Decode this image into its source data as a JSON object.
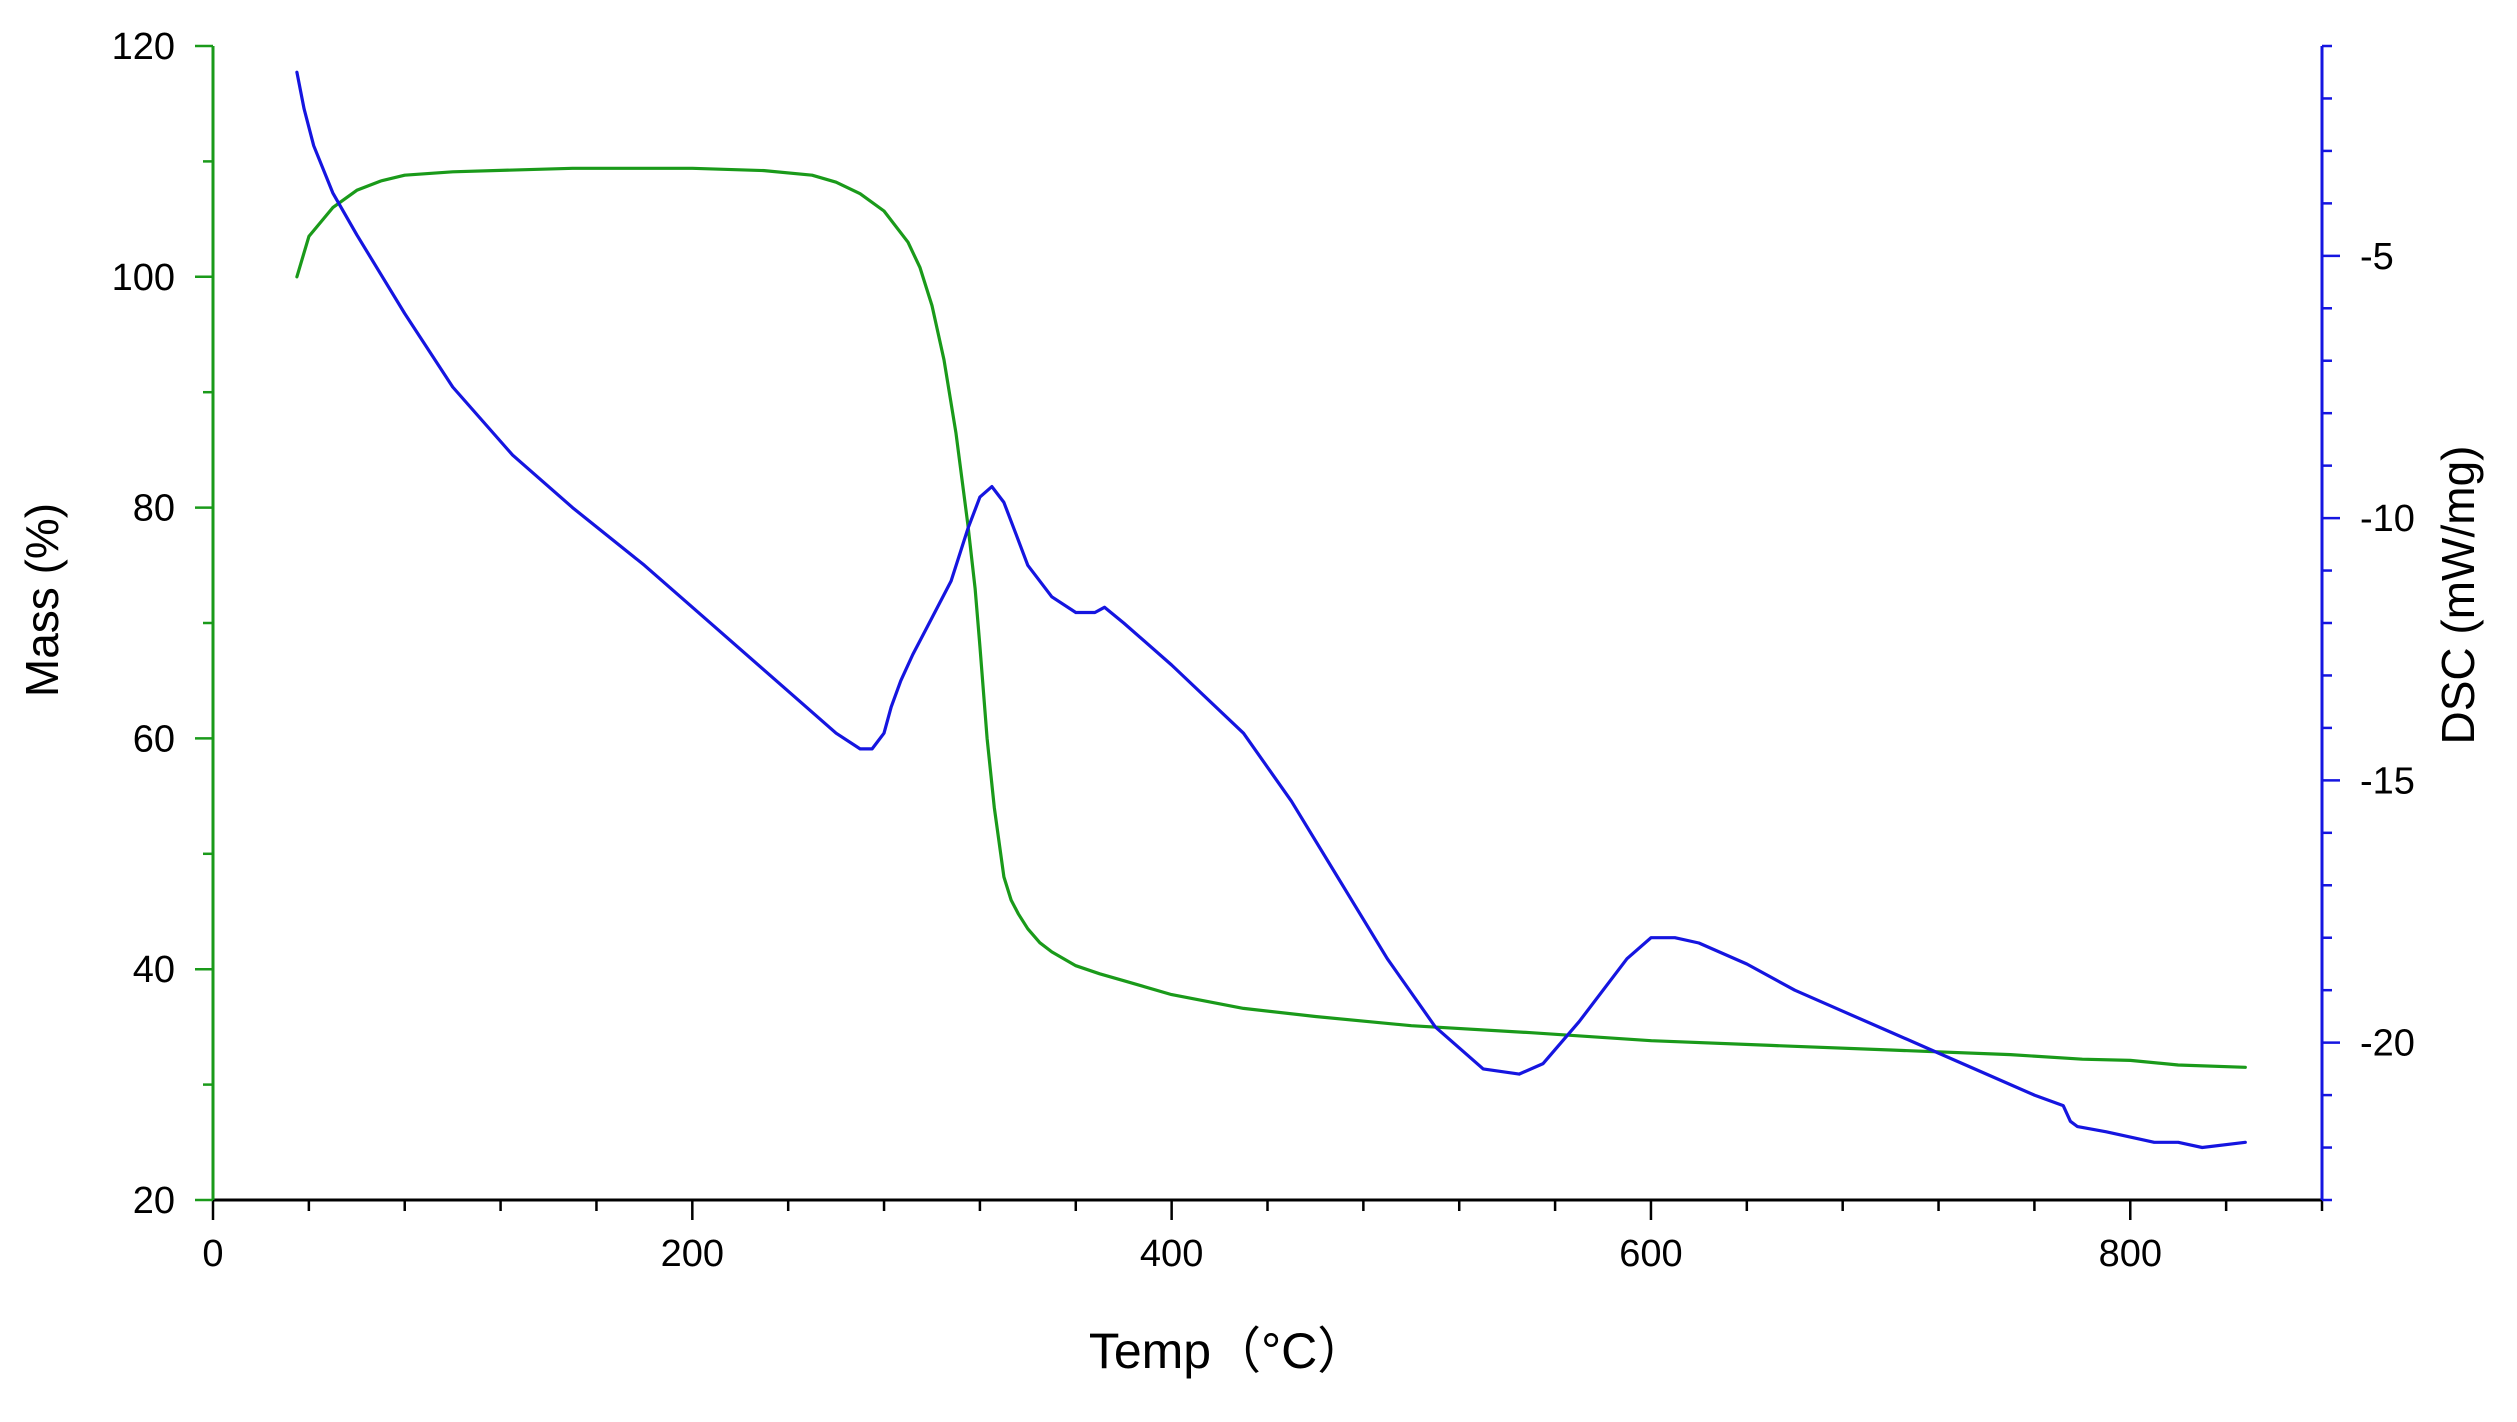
{
  "chart_data": {
    "type": "line",
    "title": "",
    "xlabel": "Temp（°C）",
    "ylabel": "Mass (%)",
    "y2label": "DSC (mW/mg)",
    "xlim": [
      0,
      880
    ],
    "ylim": [
      20,
      120
    ],
    "y2lim": [
      -23,
      -1
    ],
    "x_ticks": [
      0,
      200,
      400,
      600,
      800
    ],
    "y_ticks": [
      20,
      40,
      60,
      80,
      100,
      120
    ],
    "y2_ticks": [
      -20,
      -15,
      -10,
      -5
    ],
    "grid": false,
    "series": [
      {
        "name": "Mass",
        "axis": "left",
        "color": "#1a9a1a",
        "x": [
          35,
          40,
          50,
          60,
          70,
          80,
          100,
          150,
          200,
          230,
          250,
          260,
          270,
          280,
          290,
          295,
          300,
          305,
          310,
          315,
          318,
          320,
          323,
          326,
          330,
          333,
          336,
          340,
          345,
          350,
          360,
          370,
          380,
          400,
          430,
          460,
          500,
          550,
          600,
          650,
          700,
          750,
          780,
          800,
          820,
          848
        ],
        "values": [
          100,
          103.5,
          106,
          107.5,
          108.3,
          108.8,
          109.1,
          109.4,
          109.4,
          109.2,
          108.8,
          108.2,
          107.2,
          105.7,
          103,
          100.8,
          97.5,
          92.8,
          86.5,
          78.5,
          73,
          68,
          60,
          54,
          48,
          46,
          44.8,
          43.5,
          42.3,
          41.5,
          40.3,
          39.6,
          39,
          37.8,
          36.6,
          35.9,
          35.1,
          34.5,
          33.8,
          33.4,
          33,
          32.6,
          32.2,
          32.1,
          31.7,
          31.5
        ]
      },
      {
        "name": "DSC",
        "axis": "right",
        "color": "#1515e0",
        "x": [
          35,
          38,
          42,
          50,
          60,
          80,
          100,
          125,
          150,
          180,
          210,
          240,
          260,
          270,
          275,
          280,
          283,
          287,
          292,
          300,
          308,
          315,
          320,
          325,
          330,
          335,
          340,
          350,
          360,
          368,
          372,
          380,
          400,
          430,
          450,
          470,
          490,
          510,
          530,
          545,
          555,
          570,
          590,
          600,
          610,
          620,
          640,
          660,
          680,
          700,
          720,
          740,
          760,
          772,
          775,
          778,
          790,
          800,
          810,
          820,
          830,
          848
        ],
        "values": [
          -1.5,
          -2.2,
          -2.9,
          -3.8,
          -4.6,
          -6.1,
          -7.5,
          -8.8,
          -9.8,
          -10.9,
          -12.1,
          -13.3,
          -14.1,
          -14.4,
          -14.4,
          -14.1,
          -13.6,
          -13.1,
          -12.6,
          -11.9,
          -11.2,
          -10.2,
          -9.6,
          -9.4,
          -9.7,
          -10.3,
          -10.9,
          -11.5,
          -11.8,
          -11.8,
          -11.7,
          -12,
          -12.8,
          -14.1,
          -15.4,
          -16.9,
          -18.4,
          -19.7,
          -20.5,
          -20.6,
          -20.4,
          -19.6,
          -18.4,
          -18,
          -18,
          -18.1,
          -18.5,
          -19,
          -19.4,
          -19.8,
          -20.2,
          -20.6,
          -21,
          -21.2,
          -21.5,
          -21.6,
          -21.7,
          -21.8,
          -21.9,
          -21.9,
          -22,
          -21.9
        ]
      }
    ]
  }
}
